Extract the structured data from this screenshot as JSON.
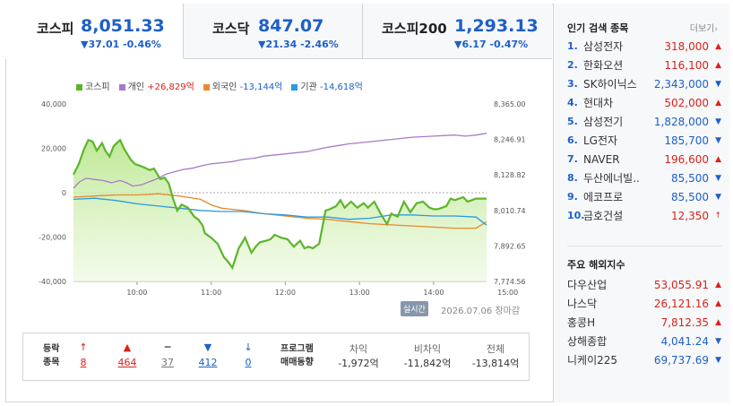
{
  "tabs": [
    {
      "name": "코스피",
      "value": "8,051.33",
      "change": "▼37.01 -0.46%",
      "active": true
    },
    {
      "name": "코스닥",
      "value": "847.07",
      "change": "▼21.34 -2.46%"
    },
    {
      "name": "코스피200",
      "value": "1,293.13",
      "change": "▼6.17 -0.47%"
    }
  ],
  "legend": [
    {
      "label": "코스피",
      "color": "#5db52a"
    },
    {
      "label": "개인",
      "value": "+26,829억",
      "color": "#a87ac7",
      "tone": "pos"
    },
    {
      "label": "외국인",
      "value": "-13,144억",
      "color": "#e8892b",
      "tone": "neg"
    },
    {
      "label": "기관",
      "value": "-14,618억",
      "color": "#2a9be0",
      "tone": "neg"
    }
  ],
  "chart_data": {
    "type": "line",
    "x_ticks": [
      "10:00",
      "11:00",
      "12:00",
      "13:00",
      "14:00",
      "15:00"
    ],
    "x_range": [
      "09:00",
      "15:30"
    ],
    "left_axis": {
      "ticks": [
        "40,000",
        "20,000",
        "0",
        "-20,000",
        "-40,000"
      ],
      "range": [
        -40000,
        40000
      ]
    },
    "right_axis": {
      "ticks": [
        "8,365.00",
        "8,246.91",
        "8,128.82",
        "8,010.74",
        "7,892.65",
        "7,774.56"
      ],
      "range": [
        7774.56,
        8365.0
      ]
    },
    "series": [
      {
        "name": "코스피",
        "axis": "right",
        "color": "#5db52a",
        "t": [
          0,
          5,
          10,
          14,
          18,
          22,
          27,
          30,
          34,
          38,
          44,
          48,
          54,
          58,
          62,
          66,
          72,
          76,
          82,
          86,
          90,
          94,
          98,
          102,
          108,
          114,
          118,
          122,
          124,
          130,
          136,
          142,
          146,
          150,
          156,
          162,
          168,
          172,
          176,
          182,
          186,
          190,
          196,
          202,
          208,
          214,
          218,
          222,
          226,
          232,
          238,
          242,
          248,
          252,
          256,
          262,
          268,
          274,
          278,
          284,
          290,
          296,
          300,
          306,
          312,
          318,
          324,
          330,
          336,
          340,
          344,
          348,
          352,
          356,
          360,
          364,
          368,
          372,
          376,
          380,
          384,
          386,
          390
        ],
        "v": [
          8130,
          8165,
          8215,
          8245,
          8240,
          8210,
          8235,
          8210,
          8190,
          8225,
          8245,
          8215,
          8180,
          8165,
          8160,
          8155,
          8145,
          8150,
          8115,
          8120,
          8100,
          8050,
          8010,
          8030,
          8020,
          7990,
          7980,
          7960,
          7935,
          7920,
          7900,
          7855,
          7840,
          7820,
          7885,
          7920,
          7870,
          7890,
          7905,
          7910,
          7915,
          7930,
          7920,
          7915,
          7890,
          7910,
          7885,
          7890,
          7885,
          7900,
          8010,
          8015,
          8025,
          8045,
          8020,
          8040,
          8020,
          8035,
          8020,
          8040,
          8000,
          7965,
          8000,
          7990,
          8040,
          8005,
          8035,
          8040,
          8020,
          8015,
          8015,
          8020,
          8025,
          8050,
          8045,
          8050,
          8055,
          8040,
          8045,
          8050,
          8050,
          8050,
          8050
        ]
      },
      {
        "name": "개인",
        "axis": "left",
        "color": "#a87ac7",
        "t": [
          0,
          6,
          12,
          20,
          28,
          36,
          44,
          50,
          56,
          64,
          72,
          80,
          88,
          96,
          104,
          112,
          120,
          130,
          140,
          150,
          160,
          170,
          180,
          200,
          220,
          240,
          260,
          280,
          300,
          320,
          340,
          360,
          370,
          380,
          390
        ],
        "v": [
          2000,
          5000,
          6500,
          6000,
          5500,
          4500,
          5500,
          4500,
          3000,
          3500,
          5000,
          6500,
          8500,
          9500,
          10500,
          11000,
          12000,
          13000,
          13500,
          14000,
          15000,
          15500,
          16500,
          17500,
          18500,
          20500,
          22000,
          23000,
          24000,
          25000,
          25500,
          26000,
          25500,
          26000,
          26800
        ]
      },
      {
        "name": "외국인",
        "axis": "left",
        "color": "#e8892b",
        "t": [
          0,
          20,
          40,
          60,
          80,
          100,
          120,
          130,
          140,
          160,
          180,
          200,
          220,
          240,
          260,
          280,
          300,
          320,
          340,
          360,
          380,
          390
        ],
        "v": [
          -2000,
          -1500,
          -1000,
          -1000,
          -500,
          -1500,
          -3000,
          -5500,
          -7000,
          -8000,
          -9500,
          -10500,
          -11500,
          -12000,
          -13000,
          -14000,
          -14500,
          -15000,
          -15500,
          -16000,
          -16000,
          -13144
        ]
      },
      {
        "name": "기관",
        "axis": "left",
        "color": "#2a9be0",
        "t": [
          0,
          20,
          40,
          60,
          80,
          100,
          120,
          140,
          160,
          180,
          200,
          220,
          240,
          260,
          280,
          300,
          320,
          340,
          360,
          380,
          390
        ],
        "v": [
          -3000,
          -2500,
          -3500,
          -5000,
          -6000,
          -7000,
          -8000,
          -8500,
          -8500,
          -9500,
          -10000,
          -11000,
          -11000,
          -12000,
          -11500,
          -10000,
          -10000,
          -10500,
          -10500,
          -11000,
          -14618
        ]
      }
    ]
  },
  "status": {
    "badge": "실시간",
    "date": "2026.07.06",
    "state": "장마감"
  },
  "breadth": {
    "label_line1": "등락",
    "label_line2": "종목",
    "items": [
      {
        "icon": "↑",
        "value": "8",
        "tone": "red",
        "name": "upper-limit"
      },
      {
        "icon": "▲",
        "value": "464",
        "tone": "red",
        "name": "rise"
      },
      {
        "icon": "━",
        "value": "37",
        "tone": "gray",
        "name": "unchanged"
      },
      {
        "icon": "▼",
        "value": "412",
        "tone": "blue",
        "name": "fall"
      },
      {
        "icon": "↓",
        "value": "0",
        "tone": "blue",
        "name": "lower-limit"
      }
    ]
  },
  "program": {
    "label_line1": "프로그램",
    "label_line2": "매매동향",
    "items": [
      {
        "head": "차익",
        "value": "-1,972억"
      },
      {
        "head": "비차익",
        "value": "-11,842억"
      },
      {
        "head": "전체",
        "value": "-13,814억"
      }
    ]
  },
  "popular": {
    "title": "인기 검색 종목",
    "more": "더보기",
    "items": [
      {
        "rank": "1.",
        "name": "삼성전자",
        "price": "318,000",
        "dir": "up"
      },
      {
        "rank": "2.",
        "name": "한화오션",
        "price": "116,100",
        "dir": "up"
      },
      {
        "rank": "3.",
        "name": "SK하이닉스",
        "price": "2,343,000",
        "dir": "down"
      },
      {
        "rank": "4.",
        "name": "현대차",
        "price": "502,000",
        "dir": "up"
      },
      {
        "rank": "5.",
        "name": "삼성전기",
        "price": "1,828,000",
        "dir": "down"
      },
      {
        "rank": "6.",
        "name": "LG전자",
        "price": "185,700",
        "dir": "down"
      },
      {
        "rank": "7.",
        "name": "NAVER",
        "price": "196,600",
        "dir": "up"
      },
      {
        "rank": "8.",
        "name": "두산에너빌..",
        "price": "85,500",
        "dir": "down"
      },
      {
        "rank": "9.",
        "name": "에코프로",
        "price": "85,500",
        "dir": "down"
      },
      {
        "rank": "10.",
        "name": "금호건설",
        "price": "12,350",
        "dir": "limit-up"
      }
    ]
  },
  "global": {
    "title": "주요 해외지수",
    "items": [
      {
        "name": "다우산업",
        "value": "53,055.91",
        "dir": "up"
      },
      {
        "name": "나스닥",
        "value": "26,121.16",
        "dir": "up"
      },
      {
        "name": "홍콩H",
        "value": "7,812.35",
        "dir": "up"
      },
      {
        "name": "상해종합",
        "value": "4,041.24",
        "dir": "down"
      },
      {
        "name": "니케이225",
        "value": "69,737.69",
        "dir": "down"
      }
    ]
  },
  "colors": {
    "up": "#d8221b",
    "down": "#1d5fc9",
    "accent": "#1d5fc9",
    "kospi_fill": "#c8ec9e"
  }
}
